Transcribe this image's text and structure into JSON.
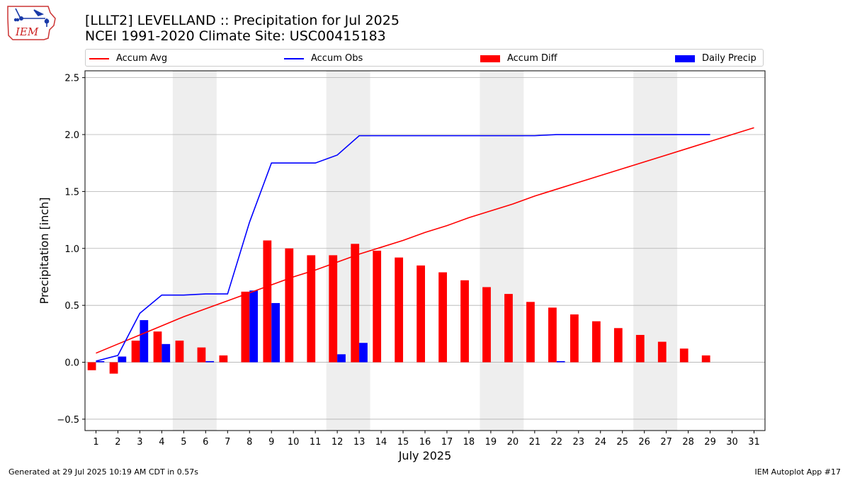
{
  "header": {
    "title_line1": "[LLLT2] LEVELLAND :: Precipitation for Jul 2025",
    "title_line2": "NCEI 1991-2020 Climate Site: USC00415183",
    "logo_text": "IEM"
  },
  "footer": {
    "left": "Generated at 29 Jul 2025 10:19 AM CDT in 0.57s",
    "right": "IEM Autoplot App #17"
  },
  "legend": {
    "items": [
      {
        "label": "Accum Avg",
        "kind": "line",
        "color": "#ff0000"
      },
      {
        "label": "Accum Obs",
        "kind": "line",
        "color": "#0000ff"
      },
      {
        "label": "Accum Diff",
        "kind": "bar",
        "color": "#ff0000"
      },
      {
        "label": "Daily Precip",
        "kind": "bar",
        "color": "#0000ff"
      }
    ]
  },
  "chart_data": {
    "type": "bar",
    "xlabel": "July 2025",
    "ylabel": "Precipitation [inch]",
    "xlim": [
      0.5,
      31.5
    ],
    "ylim": [
      -0.6,
      2.56
    ],
    "yticks": [
      -0.5,
      0.0,
      0.5,
      1.0,
      1.5,
      2.0,
      2.5
    ],
    "ytick_labels": [
      "−0.5",
      "0.0",
      "0.5",
      "1.0",
      "1.5",
      "2.0",
      "2.5"
    ],
    "xticks": [
      1,
      2,
      3,
      4,
      5,
      6,
      7,
      8,
      9,
      10,
      11,
      12,
      13,
      14,
      15,
      16,
      17,
      18,
      19,
      20,
      21,
      22,
      23,
      24,
      25,
      26,
      27,
      28,
      29,
      30,
      31
    ],
    "grid": "horizontal",
    "weekend_shading": [
      [
        5,
        6
      ],
      [
        12,
        13
      ],
      [
        19,
        20
      ],
      [
        26,
        27
      ]
    ],
    "series": [
      {
        "name": "Accum Avg",
        "type": "line",
        "color": "#ff0000",
        "x": [
          1,
          2,
          3,
          4,
          5,
          6,
          7,
          8,
          9,
          10,
          11,
          12,
          13,
          14,
          15,
          16,
          17,
          18,
          19,
          20,
          21,
          22,
          23,
          24,
          25,
          26,
          27,
          28,
          29,
          30,
          31
        ],
        "values": [
          0.08,
          0.16,
          0.24,
          0.32,
          0.4,
          0.47,
          0.54,
          0.61,
          0.68,
          0.75,
          0.81,
          0.88,
          0.95,
          1.01,
          1.07,
          1.14,
          1.2,
          1.27,
          1.33,
          1.39,
          1.46,
          1.52,
          1.58,
          1.64,
          1.7,
          1.76,
          1.82,
          1.88,
          1.94,
          2.0,
          2.06
        ]
      },
      {
        "name": "Accum Obs",
        "type": "line",
        "color": "#0000ff",
        "x": [
          1,
          2,
          3,
          4,
          5,
          6,
          7,
          8,
          9,
          10,
          11,
          12,
          13,
          14,
          15,
          16,
          17,
          18,
          19,
          20,
          21,
          22,
          23,
          24,
          25,
          26,
          27,
          28,
          29
        ],
        "values": [
          0.01,
          0.06,
          0.43,
          0.59,
          0.59,
          0.6,
          0.6,
          1.23,
          1.75,
          1.75,
          1.75,
          1.82,
          1.99,
          1.99,
          1.99,
          1.99,
          1.99,
          1.99,
          1.99,
          1.99,
          1.99,
          2.0,
          2.0,
          2.0,
          2.0,
          2.0,
          2.0,
          2.0,
          2.0
        ]
      },
      {
        "name": "Accum Diff",
        "type": "bar",
        "color": "#ff0000",
        "x": [
          1,
          2,
          3,
          4,
          5,
          6,
          7,
          8,
          9,
          10,
          11,
          12,
          13,
          14,
          15,
          16,
          17,
          18,
          19,
          20,
          21,
          22,
          23,
          24,
          25,
          26,
          27,
          28,
          29
        ],
        "values": [
          -0.07,
          -0.1,
          0.19,
          0.27,
          0.19,
          0.13,
          0.06,
          0.62,
          1.07,
          1.0,
          0.94,
          0.94,
          1.04,
          0.98,
          0.92,
          0.85,
          0.79,
          0.72,
          0.66,
          0.6,
          0.53,
          0.48,
          0.42,
          0.36,
          0.3,
          0.24,
          0.18,
          0.12,
          0.06
        ]
      },
      {
        "name": "Daily Precip",
        "type": "bar",
        "color": "#0000ff",
        "x": [
          1,
          2,
          3,
          4,
          5,
          6,
          7,
          8,
          9,
          10,
          11,
          12,
          13,
          14,
          15,
          16,
          17,
          18,
          19,
          20,
          21,
          22,
          23,
          24,
          25,
          26,
          27,
          28,
          29
        ],
        "values": [
          0.01,
          0.05,
          0.37,
          0.16,
          0.0,
          0.01,
          0.0,
          0.63,
          0.52,
          0.0,
          0.0,
          0.07,
          0.17,
          0.0,
          0.0,
          0.0,
          0.0,
          0.0,
          0.0,
          0.0,
          0.0,
          0.01,
          0.0,
          0.0,
          0.0,
          0.0,
          0.0,
          0.0,
          0.0
        ]
      }
    ]
  }
}
